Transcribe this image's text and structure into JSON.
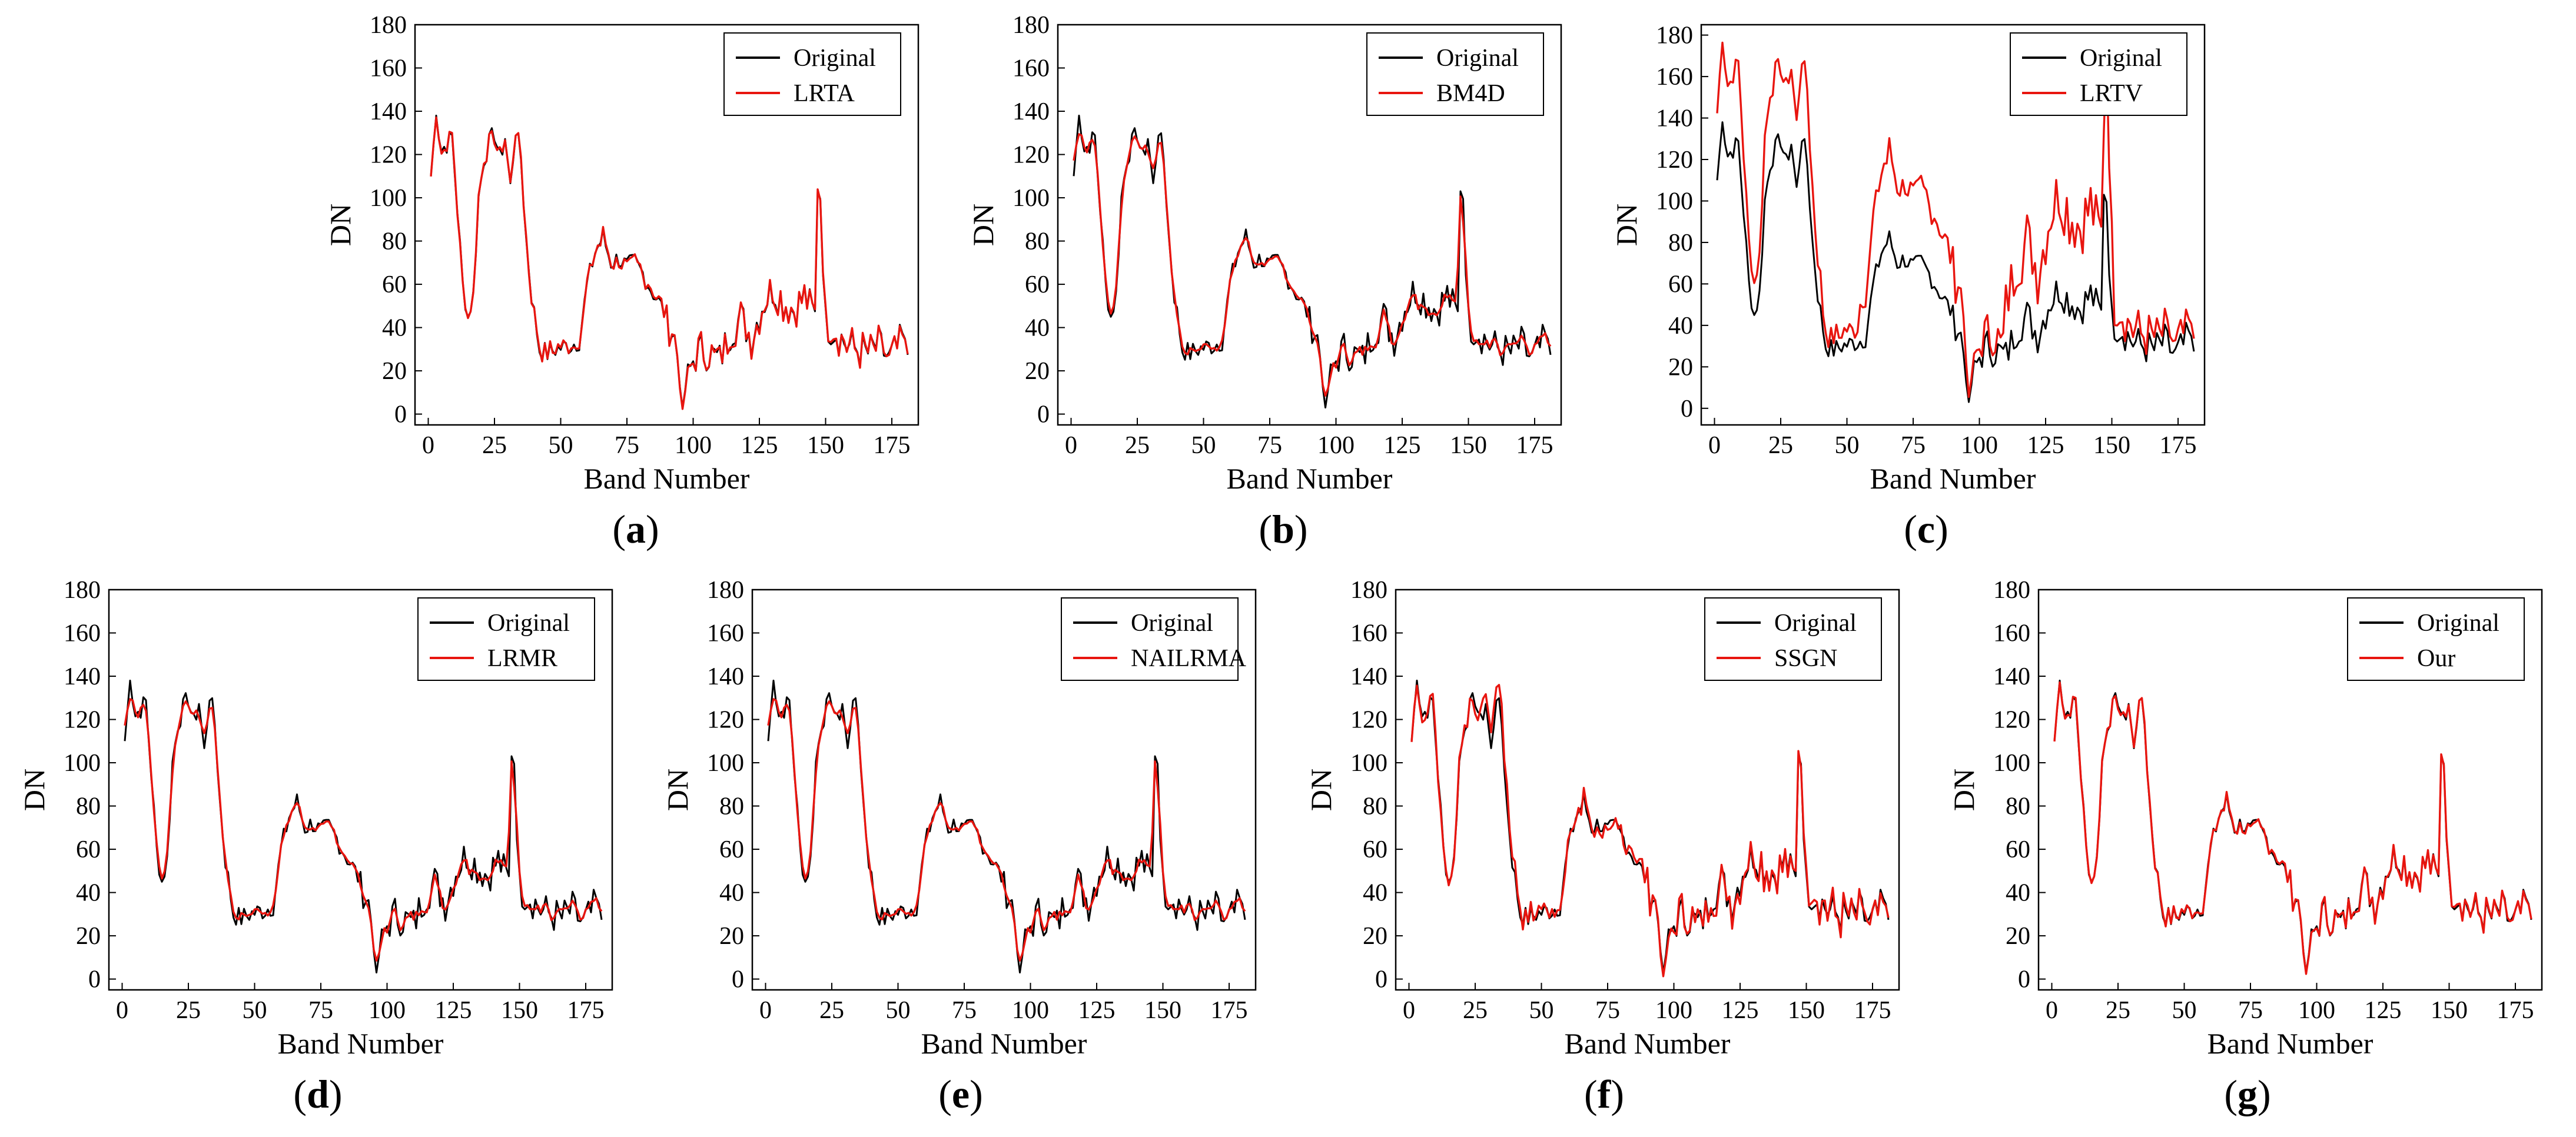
{
  "chart_data": [
    {
      "type": "line",
      "caption_letter": "a",
      "xlabel": "Band Number",
      "ylabel": "DN",
      "xlim": [
        -5,
        185
      ],
      "ylim": [
        -5,
        180
      ],
      "xticks": [
        0,
        25,
        50,
        75,
        100,
        125,
        150,
        175
      ],
      "yticks": [
        0,
        20,
        40,
        60,
        80,
        100,
        120,
        140,
        160,
        180
      ],
      "legend_position": "top-right",
      "series": [
        {
          "name": "Original",
          "color": "#000000"
        },
        {
          "name": "LRTA",
          "color": "#e8150f",
          "mode": "near"
        }
      ]
    },
    {
      "type": "line",
      "caption_letter": "b",
      "xlabel": "Band Number",
      "ylabel": "DN",
      "xlim": [
        -5,
        185
      ],
      "ylim": [
        -5,
        180
      ],
      "xticks": [
        0,
        25,
        50,
        75,
        100,
        125,
        150,
        175
      ],
      "yticks": [
        0,
        20,
        40,
        60,
        80,
        100,
        120,
        140,
        160,
        180
      ],
      "legend_position": "top-right",
      "series": [
        {
          "name": "Original",
          "color": "#000000"
        },
        {
          "name": "BM4D",
          "color": "#e8150f",
          "mode": "smooth"
        }
      ]
    },
    {
      "type": "line",
      "caption_letter": "c",
      "xlabel": "Band Number",
      "ylabel": "DN",
      "xlim": [
        -5,
        185
      ],
      "ylim": [
        -8,
        185
      ],
      "xticks": [
        0,
        25,
        50,
        75,
        100,
        125,
        150,
        175
      ],
      "yticks": [
        0,
        20,
        40,
        60,
        80,
        100,
        120,
        140,
        160,
        180
      ],
      "legend_position": "top-right",
      "series": [
        {
          "name": "Original",
          "color": "#000000"
        },
        {
          "name": "LRTV",
          "color": "#e8150f",
          "mode": "lrtv"
        }
      ]
    },
    {
      "type": "line",
      "caption_letter": "d",
      "xlabel": "Band Number",
      "ylabel": "DN",
      "xlim": [
        -5,
        185
      ],
      "ylim": [
        -5,
        180
      ],
      "xticks": [
        0,
        25,
        50,
        75,
        100,
        125,
        150,
        175
      ],
      "yticks": [
        0,
        20,
        40,
        60,
        80,
        100,
        120,
        140,
        160,
        180
      ],
      "legend_position": "top-right",
      "series": [
        {
          "name": "Original",
          "color": "#000000"
        },
        {
          "name": "LRMR",
          "color": "#e8150f",
          "mode": "smooth"
        }
      ]
    },
    {
      "type": "line",
      "caption_letter": "e",
      "xlabel": "Band Number",
      "ylabel": "DN",
      "xlim": [
        -5,
        185
      ],
      "ylim": [
        -5,
        180
      ],
      "xticks": [
        0,
        25,
        50,
        75,
        100,
        125,
        150,
        175
      ],
      "yticks": [
        0,
        20,
        40,
        60,
        80,
        100,
        120,
        140,
        160,
        180
      ],
      "legend_position": "top-right",
      "series": [
        {
          "name": "Original",
          "color": "#000000"
        },
        {
          "name": "NAILRMA",
          "color": "#e8150f",
          "mode": "smooth"
        }
      ]
    },
    {
      "type": "line",
      "caption_letter": "f",
      "xlabel": "Band Number",
      "ylabel": "DN",
      "xlim": [
        -5,
        185
      ],
      "ylim": [
        -5,
        180
      ],
      "xticks": [
        0,
        25,
        50,
        75,
        100,
        125,
        150,
        175
      ],
      "yticks": [
        0,
        20,
        40,
        60,
        80,
        100,
        120,
        140,
        160,
        180
      ],
      "legend_position": "top-right",
      "series": [
        {
          "name": "Original",
          "color": "#000000"
        },
        {
          "name": "SSGN",
          "color": "#e8150f",
          "mode": "ssgn"
        }
      ]
    },
    {
      "type": "line",
      "caption_letter": "g",
      "xlabel": "Band Number",
      "ylabel": "DN",
      "xlim": [
        -5,
        185
      ],
      "ylim": [
        -5,
        180
      ],
      "xticks": [
        0,
        25,
        50,
        75,
        100,
        125,
        150,
        175
      ],
      "yticks": [
        0,
        20,
        40,
        60,
        80,
        100,
        120,
        140,
        160,
        180
      ],
      "legend_position": "top-right",
      "series": [
        {
          "name": "Original",
          "color": "#000000"
        },
        {
          "name": "Our",
          "color": "#e8150f",
          "mode": "near"
        }
      ]
    }
  ],
  "spectrum_anchors": {
    "bands": [
      1,
      3,
      5,
      7,
      9,
      11,
      13,
      15,
      17,
      19,
      21,
      23,
      25,
      27,
      29,
      31,
      33,
      35,
      37,
      39,
      42,
      45,
      48,
      51,
      54,
      57,
      60,
      63,
      66,
      69,
      72,
      75,
      78,
      81,
      84,
      87,
      90,
      93,
      95,
      97,
      100,
      103,
      106,
      110,
      114,
      118,
      122,
      126,
      130,
      134,
      138,
      142,
      146,
      148,
      150,
      154,
      158,
      162,
      166,
      170,
      174,
      177,
      179,
      181
    ],
    "dn": [
      110,
      138,
      122,
      125,
      128,
      95,
      60,
      45,
      55,
      100,
      118,
      125,
      130,
      118,
      128,
      105,
      132,
      118,
      80,
      55,
      30,
      28,
      30,
      31,
      32,
      34,
      60,
      75,
      82,
      70,
      72,
      68,
      70,
      65,
      58,
      52,
      45,
      35,
      20,
      12,
      25,
      30,
      28,
      25,
      38,
      45,
      35,
      50,
      58,
      52,
      48,
      55,
      45,
      102,
      42,
      38,
      32,
      30,
      28,
      32,
      25,
      30,
      35,
      28
    ]
  }
}
